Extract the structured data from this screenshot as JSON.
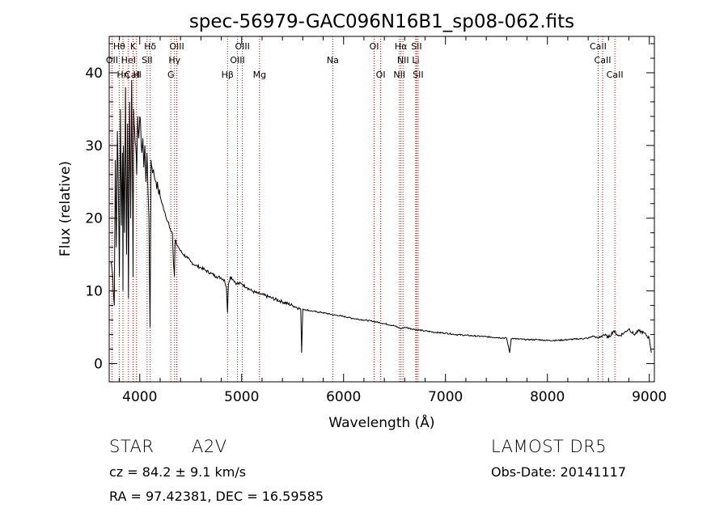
{
  "chart_data": {
    "type": "line",
    "title": "spec-56979-GAC096N16B1_sp08-062.fits",
    "xlabel": "Wavelength (Å)",
    "ylabel": "Flux (relative)",
    "xlim": [
      3700,
      9050
    ],
    "ylim": [
      -2.5,
      45
    ],
    "x_ticks": [
      4000,
      5000,
      6000,
      7000,
      8000,
      9000
    ],
    "y_ticks": [
      0,
      10,
      20,
      30,
      40
    ],
    "grid": false,
    "line_color": "#000000",
    "marker_line_color": "#cc0000",
    "spectrum": {
      "x": [
        3720,
        3735,
        3750,
        3760,
        3770,
        3780,
        3790,
        3800,
        3810,
        3820,
        3830,
        3835,
        3840,
        3850,
        3860,
        3870,
        3880,
        3889,
        3895,
        3900,
        3910,
        3920,
        3930,
        3934,
        3940,
        3950,
        3960,
        3970,
        3980,
        3990,
        4000,
        4010,
        4020,
        4030,
        4040,
        4050,
        4060,
        4070,
        4080,
        4090,
        4101,
        4110,
        4120,
        4130,
        4140,
        4160,
        4180,
        4200,
        4220,
        4240,
        4260,
        4280,
        4300,
        4320,
        4330,
        4340,
        4345,
        4350,
        4360,
        4380,
        4400,
        4430,
        4470,
        4500,
        4550,
        4600,
        4650,
        4700,
        4750,
        4800,
        4830,
        4850,
        4861,
        4870,
        4890,
        4920,
        4950,
        5000,
        5050,
        5100,
        5150,
        5200,
        5300,
        5400,
        5500,
        5580,
        5588,
        5600,
        5700,
        5800,
        5900,
        6000,
        6100,
        6200,
        6300,
        6400,
        6500,
        6563,
        6600,
        6700,
        6800,
        6900,
        7000,
        7100,
        7200,
        7300,
        7400,
        7500,
        7600,
        7630,
        7645,
        7660,
        7700,
        7800,
        7900,
        8000,
        8100,
        8200,
        8300,
        8400,
        8450,
        8500,
        8550,
        8600,
        8650,
        8700,
        8750,
        8800,
        8850,
        8900,
        8950,
        9000,
        9020
      ],
      "y": [
        14,
        12,
        8,
        28,
        16,
        32,
        24,
        12,
        35,
        19,
        29,
        10,
        30,
        18,
        38,
        15,
        33,
        9,
        28,
        36,
        20,
        39,
        22,
        12,
        35,
        32,
        30,
        26,
        34,
        31,
        34,
        32,
        29,
        31,
        27,
        30,
        25,
        29,
        24,
        20,
        5,
        28,
        27,
        26.5,
        26,
        25,
        24,
        23,
        22,
        21,
        20,
        19.5,
        18.5,
        18,
        14,
        12,
        16,
        17,
        16.5,
        16,
        15.5,
        15,
        14.5,
        14,
        13.5,
        13.2,
        12.8,
        12.4,
        12,
        11.8,
        11.5,
        10.5,
        7,
        11,
        12,
        11.5,
        11,
        11,
        10.5,
        10,
        9.7,
        9.5,
        9,
        8.5,
        8,
        7.5,
        1.5,
        7.5,
        7.2,
        7,
        6.7,
        6.5,
        6.2,
        6,
        5.8,
        5.5,
        5.2,
        4.8,
        5,
        4.7,
        4.5,
        4.3,
        4.2,
        4,
        3.9,
        3.8,
        3.7,
        3.6,
        3.5,
        1.5,
        3.4,
        3.5,
        3.4,
        3.3,
        3.3,
        3.2,
        3.2,
        3.3,
        3.4,
        3.5,
        3.8,
        3.5,
        4,
        3.6,
        4.5,
        3.8,
        4.2,
        4.8,
        4,
        4.5,
        4.2,
        3.5,
        1.5
      ]
    },
    "line_markers": [
      {
        "name": "CaII",
        "wavelength": 3934,
        "row": 3
      },
      {
        "name": "OII",
        "wavelength": 3727,
        "row": 2
      },
      {
        "name": "Hθ",
        "wavelength": 3798,
        "row": 1
      },
      {
        "name": "Hη",
        "wavelength": 3835,
        "row": 3
      },
      {
        "name": "HeI",
        "wavelength": 3889,
        "row": 2
      },
      {
        "name": "K",
        "wavelength": 3934,
        "row": 1
      },
      {
        "name": "H",
        "wavelength": 3968,
        "row": 3
      },
      {
        "name": "SII",
        "wavelength": 4072,
        "row": 2
      },
      {
        "name": "Hδ",
        "wavelength": 4102,
        "row": 1
      },
      {
        "name": "G",
        "wavelength": 4305,
        "row": 3
      },
      {
        "name": "Hγ",
        "wavelength": 4341,
        "row": 2
      },
      {
        "name": "OIII",
        "wavelength": 4363,
        "row": 1
      },
      {
        "name": "Hβ",
        "wavelength": 4861,
        "row": 3
      },
      {
        "name": "OIII",
        "wavelength": 4959,
        "row": 2
      },
      {
        "name": "OIII",
        "wavelength": 5007,
        "row": 1
      },
      {
        "name": "Mg",
        "wavelength": 5175,
        "row": 3
      },
      {
        "name": "Na",
        "wavelength": 5894,
        "row": 2
      },
      {
        "name": "OI",
        "wavelength": 6300,
        "row": 1
      },
      {
        "name": "OI",
        "wavelength": 6364,
        "row": 3
      },
      {
        "name": "NII",
        "wavelength": 6548,
        "row": 3
      },
      {
        "name": "NII",
        "wavelength": 6583,
        "row": 2
      },
      {
        "name": "Hα",
        "wavelength": 6563,
        "row": 1
      },
      {
        "name": "SII",
        "wavelength": 6716,
        "row": 1
      },
      {
        "name": "Li",
        "wavelength": 6708,
        "row": 2
      },
      {
        "name": "SII",
        "wavelength": 6731,
        "row": 3
      },
      {
        "name": "CaII",
        "wavelength": 8498,
        "row": 1
      },
      {
        "name": "CaII",
        "wavelength": 8542,
        "row": 2
      },
      {
        "name": "CaII",
        "wavelength": 8662,
        "row": 3
      }
    ]
  },
  "info": {
    "object_type": "STAR",
    "spectral_class": "A2V",
    "survey": "LAMOST  DR5",
    "redshift_line": "cz = 84.2 ± 9.1 km/s",
    "obs_date": "Obs-Date: 20141117",
    "coords": "RA =  97.42381, DEC =  16.59585"
  }
}
